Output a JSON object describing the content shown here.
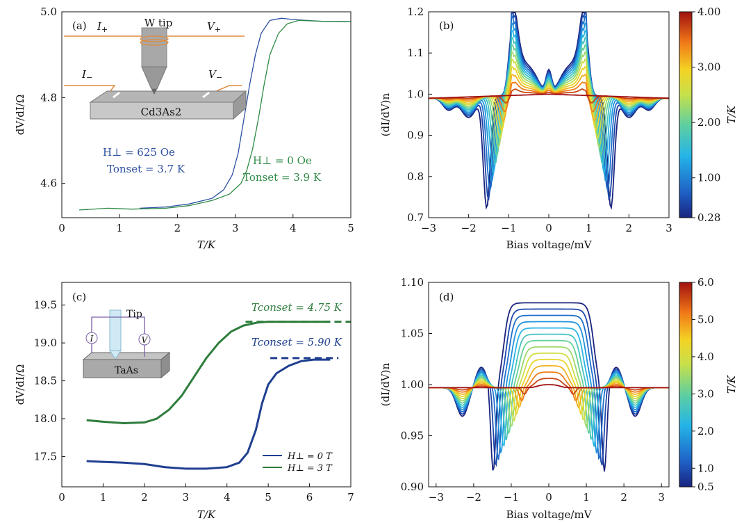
{
  "chart_data": [
    {
      "panel": "(a)",
      "type": "line",
      "xlabel": "T/K",
      "ylabel": "dV/dI/Ω",
      "xlim": [
        0,
        5
      ],
      "ylim": [
        4.52,
        5.0
      ],
      "xticks": [
        "0",
        "1",
        "2",
        "3",
        "4",
        "5"
      ],
      "yticks": [
        "4.6",
        "4.8",
        "5.0"
      ],
      "series": [
        {
          "color": "#2b4fa0",
          "x": [
            1.35,
            1.8,
            2.2,
            2.6,
            2.8,
            2.95,
            3.05,
            3.15,
            3.25,
            3.35,
            3.45,
            3.6,
            3.8,
            4.0,
            4.5,
            5.0
          ],
          "y": [
            4.542,
            4.545,
            4.552,
            4.565,
            4.585,
            4.62,
            4.67,
            4.75,
            4.83,
            4.9,
            4.95,
            4.98,
            4.985,
            4.982,
            4.978,
            4.977
          ]
        },
        {
          "color": "#2e8a45",
          "x": [
            0.3,
            0.8,
            1.2,
            1.8,
            2.2,
            2.6,
            2.9,
            3.1,
            3.2,
            3.3,
            3.4,
            3.5,
            3.6,
            3.75,
            3.9,
            4.1,
            4.5,
            5.0
          ],
          "y": [
            4.538,
            4.542,
            4.54,
            4.542,
            4.548,
            4.56,
            4.575,
            4.6,
            4.63,
            4.68,
            4.75,
            4.83,
            4.9,
            4.95,
            4.972,
            4.98,
            4.978,
            4.977
          ]
        }
      ],
      "annotations": {
        "inset_top_left": "I₊",
        "inset_tip": "W tip",
        "inset_top_right": "V₊",
        "inset_bottom_left": "I₋",
        "inset_bottom_right": "V₋",
        "inset_sample": "Cd₃As₂",
        "blue_field": "H⊥ = 625 Oe",
        "blue_onset": "Tonset = 3.7 K",
        "green_field": "H⊥ = 0 Oe",
        "green_onset": "Tonset = 3.9 K"
      }
    },
    {
      "panel": "(b)",
      "type": "line",
      "xlabel": "Bias voltage/mV",
      "ylabel": "(dI/dV)ₙ",
      "xlim": [
        -3,
        3
      ],
      "ylim": [
        0.7,
        1.2
      ],
      "xticks": [
        "−3",
        "−2",
        "−1",
        "0",
        "1",
        "2",
        "3"
      ],
      "yticks": [
        "0.7",
        "0.8",
        "0.9",
        "1.0",
        "1.1",
        "1.2"
      ],
      "colorbar": {
        "label": "T/K",
        "ticks": [
          "4.00",
          "3.00",
          "2.00",
          "1.00",
          "0.28"
        ],
        "tick_values": [
          4.0,
          3.0,
          2.0,
          1.0,
          0.28
        ],
        "min": 0.28,
        "max": 4.0
      },
      "curve_count": 14
    },
    {
      "panel": "(c)",
      "type": "line",
      "xlabel": "T/K",
      "ylabel": "dV/dI/Ω",
      "xlim": [
        0,
        7
      ],
      "ylim": [
        17.1,
        19.8
      ],
      "xticks": [
        "0",
        "1",
        "2",
        "3",
        "4",
        "5",
        "6",
        "7"
      ],
      "yticks": [
        "17.5",
        "18.0",
        "18.5",
        "19.0",
        "19.5"
      ],
      "series": [
        {
          "name": "H⊥ = 0 T",
          "color": "#1f3f8f",
          "x": [
            0.6,
            1.0,
            1.5,
            2.0,
            2.5,
            3.0,
            3.5,
            4.0,
            4.3,
            4.5,
            4.7,
            4.85,
            5.0,
            5.2,
            5.5,
            5.8,
            6.1,
            6.5
          ],
          "y": [
            17.44,
            17.43,
            17.42,
            17.4,
            17.36,
            17.34,
            17.34,
            17.36,
            17.42,
            17.55,
            17.85,
            18.2,
            18.45,
            18.6,
            18.7,
            18.76,
            18.78,
            18.78
          ]
        },
        {
          "name": "H⊥ = 3 T",
          "color": "#2e7d3c",
          "x": [
            0.6,
            1.0,
            1.5,
            2.0,
            2.3,
            2.6,
            2.9,
            3.2,
            3.5,
            3.8,
            4.1,
            4.4,
            4.75,
            5.0,
            5.5,
            6.0,
            6.5
          ],
          "y": [
            17.98,
            17.96,
            17.94,
            17.95,
            18.0,
            18.12,
            18.3,
            18.55,
            18.8,
            19.0,
            19.15,
            19.23,
            19.27,
            19.28,
            19.28,
            19.28,
            19.28
          ]
        }
      ],
      "annotations": {
        "inset_tip": "Tip",
        "inset_I": "I",
        "inset_V": "V",
        "inset_sample": "TaAs",
        "green_onset": "Tconset = 4.75 K",
        "blue_onset": "Tconset = 5.90 K"
      }
    },
    {
      "panel": "(d)",
      "type": "line",
      "xlabel": "Bias voltage/mV",
      "ylabel": "(dI/dV)ₙ",
      "xlim": [
        -3.2,
        3.2
      ],
      "ylim": [
        0.9,
        1.1
      ],
      "xticks": [
        "−3",
        "−2",
        "−1",
        "0",
        "1",
        "2",
        "3"
      ],
      "yticks": [
        "0.90",
        "0.95",
        "1.00",
        "1.05",
        "1.10"
      ],
      "colorbar": {
        "label": "T/K",
        "ticks": [
          "6.0",
          "5.0",
          "4.0",
          "3.0",
          "2.0",
          "1.0",
          "0.5"
        ],
        "tick_values": [
          6.0,
          5.0,
          4.0,
          3.0,
          2.0,
          1.0,
          0.5
        ],
        "min": 0.5,
        "max": 6.0
      },
      "curve_count": 14
    }
  ],
  "text": {
    "a": {
      "panel": "(a)",
      "xlabel": "T/K",
      "ylabel": "dV/dI/Ω",
      "tip": "W tip",
      "sample": "Cd3As2",
      "blue1": "H⊥ = 625 Oe",
      "blue2": "Tonset = 3.7 K",
      "green1": "H⊥ = 0 Oe",
      "green2": "Tonset = 3.9 K"
    },
    "b": {
      "panel": "(b)",
      "xlabel": "Bias voltage/mV",
      "ylabel": "(dI/dV)n",
      "cbar": "T/K"
    },
    "c": {
      "panel": "(c)",
      "xlabel": "T/K",
      "ylabel": "dV/dI/Ω",
      "tip": "Tip",
      "sample": "TaAs",
      "g": "Tconset = 4.75 K",
      "b": "Tconset = 5.90 K",
      "leg0": "H⊥ = 0 T",
      "leg3": "H⊥ = 3 T"
    },
    "d": {
      "panel": "(d)",
      "xlabel": "Bias voltage/mV",
      "ylabel": "(dI/dV)n",
      "cbar": "T/K"
    }
  }
}
